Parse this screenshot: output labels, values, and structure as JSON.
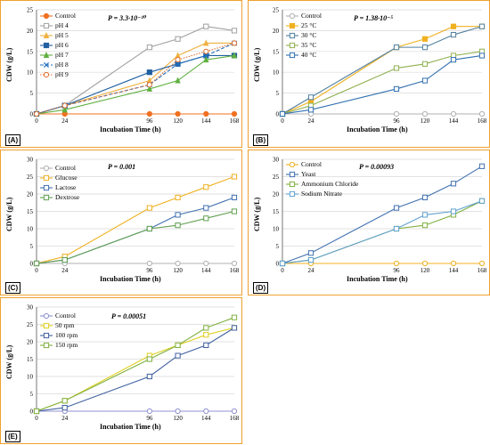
{
  "chart_data": [
    {
      "id": "A",
      "type": "line",
      "panel_label": "(A)",
      "annotation": "P = 3.3·10⁻¹⁰",
      "xlabel": "Incubation Time (h)",
      "ylabel": "CDW (g/L)",
      "x": [
        0,
        24,
        96,
        120,
        144,
        168
      ],
      "xticks": [
        0,
        24,
        96,
        120,
        144,
        168
      ],
      "ylim": [
        0,
        25
      ],
      "yticks": [
        0,
        5,
        10,
        15,
        20,
        25
      ],
      "legend_position": "top-left",
      "series": [
        {
          "name": "Control",
          "color": "#f07020",
          "marker": "filled-circle",
          "dash": "solid",
          "values": [
            0,
            0,
            0,
            0,
            0,
            0
          ]
        },
        {
          "name": "pH 4",
          "color": "#a0a0a0",
          "marker": "square",
          "dash": "solid",
          "values": [
            0,
            2,
            16,
            18,
            21,
            20
          ]
        },
        {
          "name": "pH 5",
          "color": "#f0b040",
          "marker": "triangle",
          "dash": "solid",
          "values": [
            0,
            2,
            8,
            14,
            17,
            17
          ]
        },
        {
          "name": "pH 6",
          "color": "#2060a0",
          "marker": "filled-square",
          "dash": "solid",
          "values": [
            0,
            2,
            10,
            12,
            14,
            14
          ]
        },
        {
          "name": "pH 7",
          "color": "#60b040",
          "marker": "triangle",
          "dash": "solid",
          "values": [
            0,
            1,
            6,
            8,
            13,
            14
          ]
        },
        {
          "name": "pH 8",
          "color": "#2070c0",
          "marker": "x",
          "dash": "dashed",
          "values": [
            0,
            2,
            7,
            12,
            14,
            17
          ]
        },
        {
          "name": "pH 9",
          "color": "#e07030",
          "marker": "circle",
          "dash": "dotted",
          "values": [
            0,
            2,
            7,
            13,
            15,
            17
          ]
        }
      ]
    },
    {
      "id": "B",
      "type": "line",
      "panel_label": "(B)",
      "annotation": "P = 1.38·10⁻⁵",
      "xlabel": "Incubation Time (h)",
      "ylabel": "CDW (g/L)",
      "x": [
        0,
        24,
        96,
        120,
        144,
        168
      ],
      "xticks": [
        0,
        24,
        96,
        120,
        144,
        168
      ],
      "ylim": [
        0,
        25
      ],
      "yticks": [
        0,
        5,
        10,
        15,
        20,
        25
      ],
      "legend_position": "top-left",
      "series": [
        {
          "name": "Control",
          "color": "#b0b0b0",
          "marker": "circle",
          "dash": "solid",
          "values": [
            0,
            0,
            0,
            0,
            0,
            0
          ]
        },
        {
          "name": "25 °C",
          "color": "#f0b020",
          "marker": "filled-square",
          "dash": "solid",
          "values": [
            0,
            3,
            16,
            18,
            21,
            21
          ]
        },
        {
          "name": "30 °C",
          "color": "#5080a0",
          "marker": "square",
          "dash": "solid",
          "values": [
            0,
            4,
            16,
            16,
            19,
            21
          ]
        },
        {
          "name": "35 °C",
          "color": "#90b050",
          "marker": "square",
          "dash": "solid",
          "values": [
            0,
            2,
            11,
            12,
            14,
            15
          ]
        },
        {
          "name": "40 °C",
          "color": "#3070b0",
          "marker": "square",
          "dash": "solid",
          "values": [
            0,
            1,
            6,
            8,
            13,
            14
          ]
        }
      ]
    },
    {
      "id": "C",
      "type": "line",
      "panel_label": "(C)",
      "annotation": "P = 0.001",
      "xlabel": "Incubation Time (h)",
      "ylabel": "CDW (g/L)",
      "x": [
        0,
        24,
        96,
        120,
        144,
        168
      ],
      "xticks": [
        0,
        24,
        96,
        120,
        144,
        168
      ],
      "ylim": [
        0,
        30
      ],
      "yticks": [
        0,
        5,
        10,
        15,
        20,
        25,
        30
      ],
      "legend_position": "top-left",
      "series": [
        {
          "name": "Control",
          "color": "#b0b0b0",
          "marker": "circle",
          "dash": "solid",
          "values": [
            0,
            0,
            0,
            0,
            0,
            0
          ]
        },
        {
          "name": "Glucose",
          "color": "#f0b020",
          "marker": "square",
          "dash": "solid",
          "values": [
            0,
            2,
            16,
            19,
            22,
            25
          ]
        },
        {
          "name": "Lactose",
          "color": "#4070b0",
          "marker": "square",
          "dash": "solid",
          "values": [
            0,
            1,
            10,
            14,
            16,
            19
          ]
        },
        {
          "name": "Dextrose",
          "color": "#60a050",
          "marker": "square",
          "dash": "solid",
          "values": [
            0,
            1,
            10,
            11,
            13,
            15
          ]
        }
      ]
    },
    {
      "id": "D",
      "type": "line",
      "panel_label": "(D)",
      "annotation": "P = 0.00093",
      "xlabel": "Incubation Time (h)",
      "ylabel": "CDW (g/L)",
      "x": [
        0,
        24,
        96,
        120,
        144,
        168
      ],
      "xticks": [
        0,
        24,
        96,
        120,
        144,
        168
      ],
      "ylim": [
        0,
        30
      ],
      "yticks": [
        0,
        5,
        10,
        15,
        20,
        25,
        30
      ],
      "legend_position": "top-left",
      "series": [
        {
          "name": "Control",
          "color": "#f0b020",
          "marker": "circle",
          "dash": "solid",
          "values": [
            0,
            0,
            0,
            0,
            0,
            0
          ]
        },
        {
          "name": "Yeast",
          "color": "#4070b0",
          "marker": "square",
          "dash": "solid",
          "values": [
            0,
            3,
            16,
            19,
            23,
            28
          ]
        },
        {
          "name": "Ammonium Chloride",
          "color": "#80b040",
          "marker": "square",
          "dash": "solid",
          "values": [
            0,
            1,
            10,
            11,
            14,
            18
          ]
        },
        {
          "name": "Sodium Nitrate",
          "color": "#60a0d0",
          "marker": "square",
          "dash": "solid",
          "values": [
            0,
            1,
            10,
            14,
            15,
            18
          ]
        }
      ]
    },
    {
      "id": "E",
      "type": "line",
      "panel_label": "(E)",
      "annotation": "P = 0.00051",
      "xlabel": "Incubation Time (h)",
      "ylabel": "CDW (g/L)",
      "x": [
        0,
        24,
        96,
        120,
        144,
        168
      ],
      "xticks": [
        0,
        24,
        96,
        120,
        144,
        168
      ],
      "ylim": [
        0,
        30
      ],
      "yticks": [
        0,
        5,
        10,
        15,
        20,
        25,
        30
      ],
      "legend_position": "top-left",
      "series": [
        {
          "name": "Control",
          "color": "#9090d0",
          "marker": "circle",
          "dash": "solid",
          "values": [
            0,
            0,
            0,
            0,
            0,
            0
          ]
        },
        {
          "name": "50 rpm",
          "color": "#e0d020",
          "marker": "square",
          "dash": "solid",
          "values": [
            0,
            3,
            16,
            19,
            22,
            24
          ]
        },
        {
          "name": "100 rpm",
          "color": "#4060a0",
          "marker": "square",
          "dash": "solid",
          "values": [
            0,
            1,
            10,
            16,
            19,
            24
          ]
        },
        {
          "name": "150 rpm",
          "color": "#80b040",
          "marker": "square",
          "dash": "solid",
          "values": [
            0,
            3,
            15,
            19,
            24,
            27
          ]
        }
      ]
    }
  ]
}
